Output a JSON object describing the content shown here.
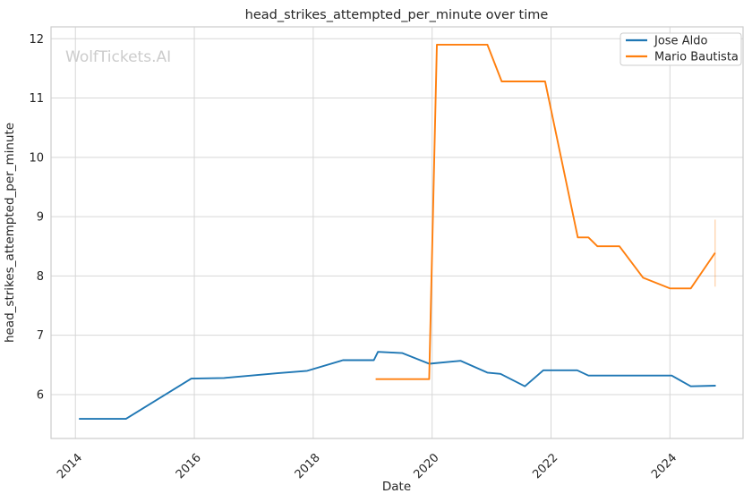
{
  "watermark": "WolfTickets.AI",
  "chart_data": {
    "type": "line",
    "title": "head_strikes_attempted_per_minute over time",
    "xlabel": "Date",
    "ylabel": "head_strikes_attempted_per_minute",
    "grid": true,
    "xlim": [
      2013.59,
      2025.23
    ],
    "ylim": [
      5.26,
      12.2
    ],
    "x_tick_labels": [
      "2014",
      "2016",
      "2018",
      "2020",
      "2022",
      "2024"
    ],
    "x_tick_values": [
      2014,
      2016,
      2018,
      2020,
      2022,
      2024
    ],
    "y_tick_labels": [
      "6",
      "7",
      "8",
      "9",
      "10",
      "11",
      "12"
    ],
    "y_tick_values": [
      6,
      7,
      8,
      9,
      10,
      11,
      12
    ],
    "legend": {
      "position": "upper right",
      "entries": [
        "Jose Aldo",
        "Mario Bautista"
      ]
    },
    "series": [
      {
        "name": "Jose Aldo",
        "color": "#1f77b4",
        "points": [
          [
            2014.06,
            5.59
          ],
          [
            2014.85,
            5.59
          ],
          [
            2015.95,
            6.27
          ],
          [
            2016.5,
            6.28
          ],
          [
            2017.4,
            6.36
          ],
          [
            2017.9,
            6.4
          ],
          [
            2018.5,
            6.58
          ],
          [
            2019.02,
            6.58
          ],
          [
            2019.09,
            6.72
          ],
          [
            2019.5,
            6.7
          ],
          [
            2019.95,
            6.52
          ],
          [
            2020.48,
            6.57
          ],
          [
            2020.93,
            6.37
          ],
          [
            2021.15,
            6.35
          ],
          [
            2021.56,
            6.14
          ],
          [
            2021.87,
            6.41
          ],
          [
            2022.44,
            6.41
          ],
          [
            2022.63,
            6.32
          ],
          [
            2024.03,
            6.32
          ],
          [
            2024.35,
            6.14
          ],
          [
            2024.77,
            6.15
          ]
        ]
      },
      {
        "name": "Mario Bautista",
        "color": "#ff7f0e",
        "points": [
          [
            2019.05,
            6.26
          ],
          [
            2019.95,
            6.26
          ],
          [
            2020.08,
            11.9
          ],
          [
            2020.93,
            11.9
          ],
          [
            2021.17,
            11.28
          ],
          [
            2021.9,
            11.28
          ],
          [
            2022.45,
            8.65
          ],
          [
            2022.63,
            8.65
          ],
          [
            2022.78,
            8.5
          ],
          [
            2023.15,
            8.5
          ],
          [
            2023.55,
            7.97
          ],
          [
            2024.0,
            7.79
          ],
          [
            2024.35,
            7.79
          ],
          [
            2024.76,
            8.39
          ]
        ],
        "error_bar": {
          "x": 2024.76,
          "y_low": 7.82,
          "y_high": 8.95
        }
      }
    ]
  }
}
